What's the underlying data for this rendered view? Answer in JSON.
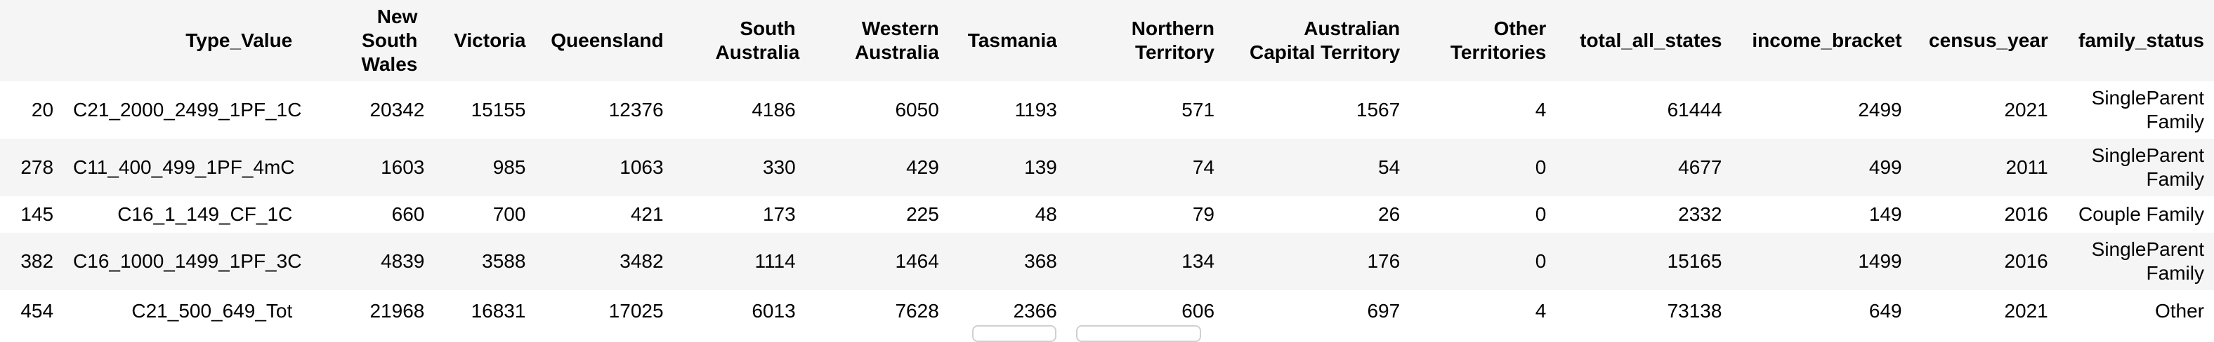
{
  "table": {
    "columns": [
      "",
      "Type_Value",
      "New South Wales",
      "Victoria",
      "Queensland",
      "South Australia",
      "Western Australia",
      "Tasmania",
      "Northern Territory",
      "Australian Capital Territory",
      "Other Territories",
      "total_all_states",
      "income_bracket",
      "census_year",
      "family_status"
    ],
    "rows": [
      [
        "20",
        "C21_2000_2499_1PF_1C",
        "20342",
        "15155",
        "12376",
        "4186",
        "6050",
        "1193",
        "571",
        "1567",
        "4",
        "61444",
        "2499",
        "2021",
        "SingleParent Family"
      ],
      [
        "278",
        "C11_400_499_1PF_4mC",
        "1603",
        "985",
        "1063",
        "330",
        "429",
        "139",
        "74",
        "54",
        "0",
        "4677",
        "499",
        "2011",
        "SingleParent Family"
      ],
      [
        "145",
        "C16_1_149_CF_1C",
        "660",
        "700",
        "421",
        "173",
        "225",
        "48",
        "79",
        "26",
        "0",
        "2332",
        "149",
        "2016",
        "Couple Family"
      ],
      [
        "382",
        "C16_1000_1499_1PF_3C",
        "4839",
        "3588",
        "3482",
        "1114",
        "1464",
        "368",
        "134",
        "176",
        "0",
        "15165",
        "1499",
        "2016",
        "SingleParent Family"
      ],
      [
        "454",
        "C21_500_649_Tot",
        "21968",
        "16831",
        "17025",
        "6013",
        "7628",
        "2366",
        "606",
        "697",
        "4",
        "73138",
        "649",
        "2021",
        "Other"
      ]
    ]
  }
}
